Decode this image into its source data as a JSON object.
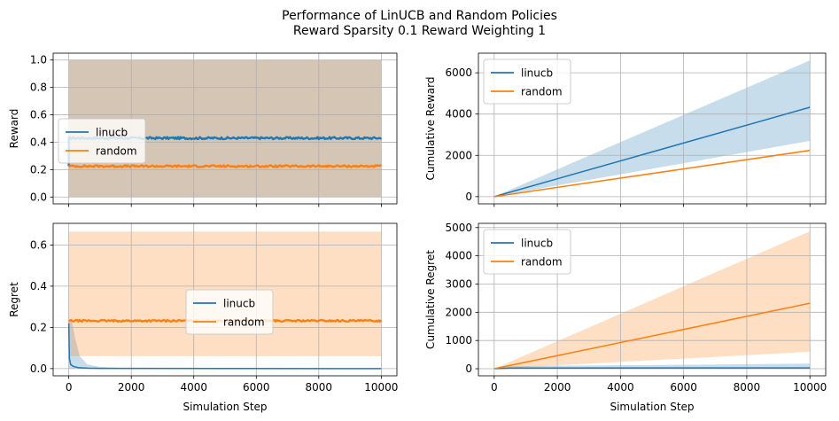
{
  "figure": {
    "title_line1": "Performance of LinUCB and Random Policies",
    "title_line2": "Reward Sparsity 0.1 Reward Weighting 1",
    "colors": {
      "linucb": "#1f77b4",
      "random": "#ff7f0e",
      "grid": "#b0b0b0"
    }
  },
  "chart_data": [
    {
      "id": "reward",
      "type": "line",
      "title": "",
      "xlabel": "",
      "ylabel": "Reward",
      "xlim": [
        -500,
        10500
      ],
      "ylim": [
        -0.05,
        1.05
      ],
      "xticks": [
        0,
        2000,
        4000,
        6000,
        8000,
        10000
      ],
      "xtick_labels_visible": false,
      "yticks": [
        0.0,
        0.2,
        0.4,
        0.6,
        0.8,
        1.0
      ],
      "ytick_labels": [
        "0.0",
        "0.2",
        "0.4",
        "0.6",
        "0.8",
        "1.0"
      ],
      "grid": true,
      "legend_loc": "center-left",
      "series": [
        {
          "name": "linucb",
          "color": "#1f77b4",
          "x": [
            0,
            10000
          ],
          "y": [
            0.43,
            0.43
          ],
          "band": [
            [
              0,
              10000
            ],
            [
              0,
              0
            ],
            [
              1,
              1
            ]
          ],
          "noise": 0.008,
          "initial_spike": [
            0.43,
            0.23
          ]
        },
        {
          "name": "random",
          "color": "#ff7f0e",
          "x": [
            0,
            10000
          ],
          "y": [
            0.225,
            0.225
          ],
          "band": [
            [
              0,
              10000
            ],
            [
              0,
              0
            ],
            [
              1,
              1
            ]
          ],
          "noise": 0.007
        }
      ]
    },
    {
      "id": "cumulative_reward",
      "type": "line",
      "title": "",
      "xlabel": "",
      "ylabel": "Cumulative Reward",
      "xlim": [
        -500,
        10500
      ],
      "ylim": [
        -350,
        6950
      ],
      "xticks": [
        0,
        2000,
        4000,
        6000,
        8000,
        10000
      ],
      "xtick_labels_visible": false,
      "yticks": [
        0,
        2000,
        4000,
        6000
      ],
      "ytick_labels": [
        "0",
        "2000",
        "4000",
        "6000"
      ],
      "grid": true,
      "legend_loc": "upper-left",
      "series": [
        {
          "name": "linucb",
          "color": "#1f77b4",
          "x": [
            0,
            10000
          ],
          "y": [
            0,
            4330
          ],
          "band": [
            [
              0,
              10000
            ],
            [
              0,
              2700
            ],
            [
              0,
              6600
            ]
          ]
        },
        {
          "name": "random",
          "color": "#ff7f0e",
          "x": [
            0,
            10000
          ],
          "y": [
            0,
            2240
          ],
          "band": [
            [
              0,
              10000
            ],
            [
              0,
              2190
            ],
            [
              0,
              2290
            ]
          ]
        }
      ]
    },
    {
      "id": "regret",
      "type": "line",
      "title": "",
      "xlabel": "Simulation Step",
      "ylabel": "Regret",
      "xlim": [
        -500,
        10500
      ],
      "ylim": [
        -0.035,
        0.705
      ],
      "xticks": [
        0,
        2000,
        4000,
        6000,
        8000,
        10000
      ],
      "xtick_labels_visible": true,
      "xtick_labels": [
        "0",
        "2000",
        "4000",
        "6000",
        "8000",
        "10000"
      ],
      "yticks": [
        0.0,
        0.2,
        0.4,
        0.6
      ],
      "ytick_labels": [
        "0.0",
        "0.2",
        "0.4",
        "0.6"
      ],
      "grid": true,
      "legend_loc": "center",
      "series": [
        {
          "name": "linucb",
          "color": "#1f77b4",
          "x": [
            0,
            20,
            60,
            150,
            300,
            600,
            1000,
            10000
          ],
          "y": [
            0.22,
            0.05,
            0.02,
            0.01,
            0.005,
            0.002,
            0.001,
            0.0
          ],
          "band": [
            [
              0,
              100,
              200,
              350,
              600,
              1000,
              2000,
              10000
            ],
            [
              0,
              0,
              0,
              0,
              0,
              0,
              0,
              0
            ],
            [
              0.23,
              0.23,
              0.15,
              0.06,
              0.02,
              0.008,
              0.002,
              0.0
            ]
          ]
        },
        {
          "name": "random",
          "color": "#ff7f0e",
          "x": [
            0,
            10000
          ],
          "y": [
            0.232,
            0.232
          ],
          "band": [
            [
              0,
              10000
            ],
            [
              0.06,
              0.06
            ],
            [
              0.665,
              0.665
            ]
          ],
          "noise": 0.004
        }
      ]
    },
    {
      "id": "cumulative_regret",
      "type": "line",
      "title": "",
      "xlabel": "Simulation Step",
      "ylabel": "Cumulative Regret",
      "xlim": [
        -500,
        10500
      ],
      "ylim": [
        -250,
        5150
      ],
      "xticks": [
        0,
        2000,
        4000,
        6000,
        8000,
        10000
      ],
      "xtick_labels_visible": true,
      "xtick_labels": [
        "0",
        "2000",
        "4000",
        "6000",
        "8000",
        "10000"
      ],
      "yticks": [
        0,
        1000,
        2000,
        3000,
        4000,
        5000
      ],
      "ytick_labels": [
        "0",
        "1000",
        "2000",
        "3000",
        "4000",
        "5000"
      ],
      "grid": true,
      "legend_loc": "upper-left",
      "series": [
        {
          "name": "linucb",
          "color": "#1f77b4",
          "x": [
            0,
            500,
            10000
          ],
          "y": [
            0,
            25,
            30
          ],
          "band": [
            [
              0,
              500,
              10000
            ],
            [
              0,
              0,
              0
            ],
            [
              0,
              90,
              180
            ]
          ]
        },
        {
          "name": "random",
          "color": "#ff7f0e",
          "x": [
            0,
            10000
          ],
          "y": [
            0,
            2320
          ],
          "band": [
            [
              0,
              10000
            ],
            [
              0,
              600
            ],
            [
              0,
              4870
            ]
          ]
        }
      ]
    }
  ]
}
